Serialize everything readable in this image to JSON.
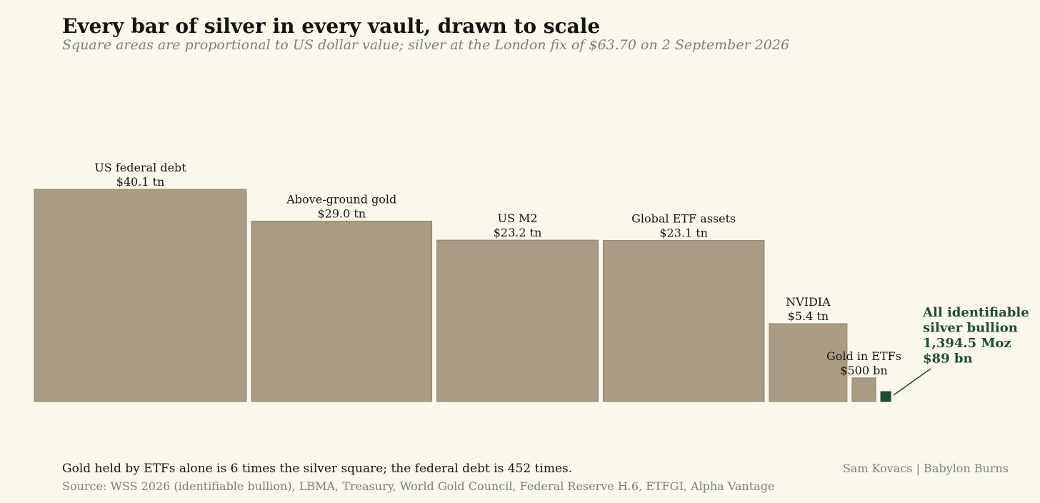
{
  "colors": {
    "background": "#faf8ec",
    "square_fill": "#aa9b85",
    "square_stroke": "#8f8270",
    "highlight": "#1f4d33",
    "muted_text": "#7a7f82",
    "main_text": "#151515"
  },
  "header": {
    "title": "Every bar of silver in every vault, drawn to scale",
    "subtitle": "Square areas are proportional to US dollar value; silver at the London fix of $63.70 on 2 September 2026"
  },
  "chart_data": {
    "type": "bar",
    "encoding": "square-area",
    "unit": "USD",
    "categories": [
      "US federal debt",
      "Above-ground gold",
      "US M2",
      "Global ETF assets",
      "NVIDIA",
      "Gold in ETFs",
      "All identifiable silver bullion"
    ],
    "values": [
      40100000000000,
      29000000000000,
      23200000000000,
      23100000000000,
      5400000000000,
      500000000000,
      89000000000
    ],
    "value_labels": [
      "$40.1 tn",
      "$29.0 tn",
      "$23.2 tn",
      "$23.1 tn",
      "$5.4 tn",
      "$500 bn",
      "$89 bn"
    ],
    "highlight": {
      "category": "All identifiable silver bullion",
      "label_lines": [
        "All identifiable",
        "silver bullion",
        "1,394.5 Moz",
        "$89 bn"
      ]
    }
  },
  "footer": {
    "note": "Gold held by ETFs alone is 6 times the silver square; the federal debt is 452 times.",
    "source": "Source: WSS 2026 (identifiable bullion), LBMA, Treasury, World Gold Council, Federal Reserve H.6, ETFGI, Alpha Vantage",
    "credit": "Sam Kovacs | Babylon Burns"
  }
}
